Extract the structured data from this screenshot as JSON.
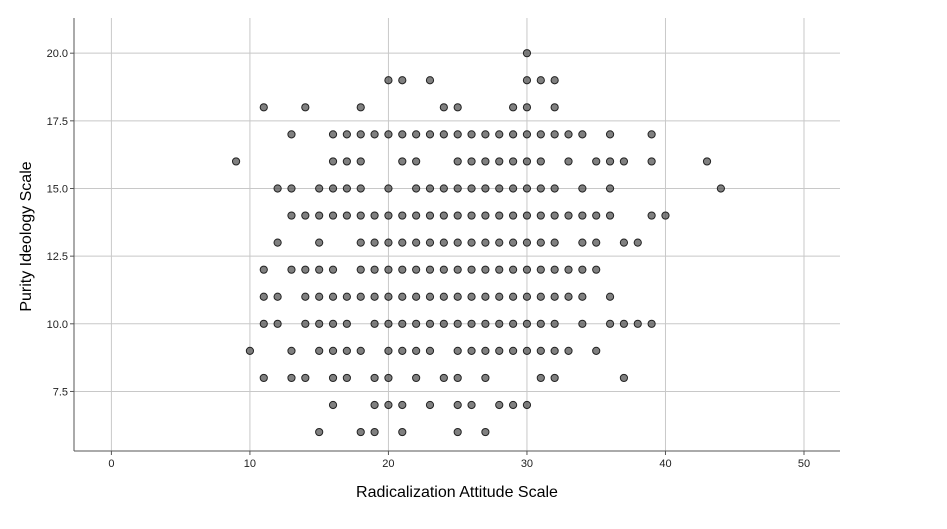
{
  "chart_data": {
    "type": "scatter",
    "title": "",
    "xlabel": "Radicalization Attitude Scale",
    "ylabel": "Purity Ideology Scale",
    "xlim": [
      -2.7,
      52.6
    ],
    "ylim": [
      5.3,
      21.3
    ],
    "x_ticks": [
      0,
      10,
      20,
      30,
      40,
      50
    ],
    "y_ticks": [
      7.5,
      10.0,
      12.5,
      15.0,
      17.5,
      20.0
    ],
    "x_tick_labels": [
      "0",
      "10",
      "20",
      "30",
      "40",
      "50"
    ],
    "y_tick_labels": [
      "7.5",
      "10.0",
      "12.5",
      "15.0",
      "17.5",
      "20.0"
    ],
    "grid": true,
    "marker_color": "#555555",
    "marker_edge_color": "#222222",
    "series": [
      {
        "points": [
          [
            30,
            20
          ],
          [
            20,
            19
          ],
          [
            21,
            19
          ],
          [
            23,
            19
          ],
          [
            30,
            19
          ],
          [
            31,
            19
          ],
          [
            32,
            19
          ],
          [
            11,
            18
          ],
          [
            14,
            18
          ],
          [
            18,
            18
          ],
          [
            24,
            18
          ],
          [
            25,
            18
          ],
          [
            29,
            18
          ],
          [
            30,
            18
          ],
          [
            32,
            18
          ],
          [
            13,
            17
          ],
          [
            16,
            17
          ],
          [
            17,
            17
          ],
          [
            18,
            17
          ],
          [
            19,
            17
          ],
          [
            20,
            17
          ],
          [
            21,
            17
          ],
          [
            22,
            17
          ],
          [
            23,
            17
          ],
          [
            24,
            17
          ],
          [
            25,
            17
          ],
          [
            26,
            17
          ],
          [
            27,
            17
          ],
          [
            28,
            17
          ],
          [
            29,
            17
          ],
          [
            30,
            17
          ],
          [
            31,
            17
          ],
          [
            32,
            17
          ],
          [
            33,
            17
          ],
          [
            34,
            17
          ],
          [
            36,
            17
          ],
          [
            39,
            17
          ],
          [
            9,
            16
          ],
          [
            16,
            16
          ],
          [
            17,
            16
          ],
          [
            18,
            16
          ],
          [
            21,
            16
          ],
          [
            22,
            16
          ],
          [
            25,
            16
          ],
          [
            26,
            16
          ],
          [
            27,
            16
          ],
          [
            28,
            16
          ],
          [
            29,
            16
          ],
          [
            30,
            16
          ],
          [
            31,
            16
          ],
          [
            33,
            16
          ],
          [
            35,
            16
          ],
          [
            36,
            16
          ],
          [
            37,
            16
          ],
          [
            39,
            16
          ],
          [
            43,
            16
          ],
          [
            12,
            15
          ],
          [
            13,
            15
          ],
          [
            15,
            15
          ],
          [
            16,
            15
          ],
          [
            17,
            15
          ],
          [
            18,
            15
          ],
          [
            20,
            15
          ],
          [
            22,
            15
          ],
          [
            23,
            15
          ],
          [
            24,
            15
          ],
          [
            25,
            15
          ],
          [
            26,
            15
          ],
          [
            27,
            15
          ],
          [
            28,
            15
          ],
          [
            29,
            15
          ],
          [
            30,
            15
          ],
          [
            31,
            15
          ],
          [
            32,
            15
          ],
          [
            34,
            15
          ],
          [
            36,
            15
          ],
          [
            44,
            15
          ],
          [
            13,
            14
          ],
          [
            14,
            14
          ],
          [
            15,
            14
          ],
          [
            16,
            14
          ],
          [
            17,
            14
          ],
          [
            18,
            14
          ],
          [
            19,
            14
          ],
          [
            20,
            14
          ],
          [
            21,
            14
          ],
          [
            22,
            14
          ],
          [
            23,
            14
          ],
          [
            24,
            14
          ],
          [
            25,
            14
          ],
          [
            26,
            14
          ],
          [
            27,
            14
          ],
          [
            28,
            14
          ],
          [
            29,
            14
          ],
          [
            30,
            14
          ],
          [
            31,
            14
          ],
          [
            32,
            14
          ],
          [
            33,
            14
          ],
          [
            34,
            14
          ],
          [
            35,
            14
          ],
          [
            36,
            14
          ],
          [
            39,
            14
          ],
          [
            40,
            14
          ],
          [
            12,
            13
          ],
          [
            15,
            13
          ],
          [
            18,
            13
          ],
          [
            19,
            13
          ],
          [
            20,
            13
          ],
          [
            21,
            13
          ],
          [
            22,
            13
          ],
          [
            23,
            13
          ],
          [
            24,
            13
          ],
          [
            25,
            13
          ],
          [
            26,
            13
          ],
          [
            27,
            13
          ],
          [
            28,
            13
          ],
          [
            29,
            13
          ],
          [
            30,
            13
          ],
          [
            31,
            13
          ],
          [
            32,
            13
          ],
          [
            34,
            13
          ],
          [
            35,
            13
          ],
          [
            37,
            13
          ],
          [
            38,
            13
          ],
          [
            11,
            12
          ],
          [
            13,
            12
          ],
          [
            14,
            12
          ],
          [
            15,
            12
          ],
          [
            16,
            12
          ],
          [
            18,
            12
          ],
          [
            19,
            12
          ],
          [
            20,
            12
          ],
          [
            21,
            12
          ],
          [
            22,
            12
          ],
          [
            23,
            12
          ],
          [
            24,
            12
          ],
          [
            25,
            12
          ],
          [
            26,
            12
          ],
          [
            27,
            12
          ],
          [
            28,
            12
          ],
          [
            29,
            12
          ],
          [
            30,
            12
          ],
          [
            31,
            12
          ],
          [
            32,
            12
          ],
          [
            33,
            12
          ],
          [
            34,
            12
          ],
          [
            35,
            12
          ],
          [
            11,
            11
          ],
          [
            12,
            11
          ],
          [
            14,
            11
          ],
          [
            15,
            11
          ],
          [
            16,
            11
          ],
          [
            17,
            11
          ],
          [
            18,
            11
          ],
          [
            19,
            11
          ],
          [
            20,
            11
          ],
          [
            21,
            11
          ],
          [
            22,
            11
          ],
          [
            23,
            11
          ],
          [
            24,
            11
          ],
          [
            25,
            11
          ],
          [
            26,
            11
          ],
          [
            27,
            11
          ],
          [
            28,
            11
          ],
          [
            29,
            11
          ],
          [
            30,
            11
          ],
          [
            31,
            11
          ],
          [
            32,
            11
          ],
          [
            33,
            11
          ],
          [
            34,
            11
          ],
          [
            36,
            11
          ],
          [
            11,
            10
          ],
          [
            12,
            10
          ],
          [
            14,
            10
          ],
          [
            15,
            10
          ],
          [
            16,
            10
          ],
          [
            17,
            10
          ],
          [
            19,
            10
          ],
          [
            20,
            10
          ],
          [
            21,
            10
          ],
          [
            22,
            10
          ],
          [
            23,
            10
          ],
          [
            24,
            10
          ],
          [
            25,
            10
          ],
          [
            26,
            10
          ],
          [
            27,
            10
          ],
          [
            28,
            10
          ],
          [
            29,
            10
          ],
          [
            30,
            10
          ],
          [
            31,
            10
          ],
          [
            32,
            10
          ],
          [
            34,
            10
          ],
          [
            36,
            10
          ],
          [
            37,
            10
          ],
          [
            38,
            10
          ],
          [
            39,
            10
          ],
          [
            10,
            9
          ],
          [
            13,
            9
          ],
          [
            15,
            9
          ],
          [
            16,
            9
          ],
          [
            17,
            9
          ],
          [
            18,
            9
          ],
          [
            20,
            9
          ],
          [
            21,
            9
          ],
          [
            22,
            9
          ],
          [
            23,
            9
          ],
          [
            25,
            9
          ],
          [
            26,
            9
          ],
          [
            27,
            9
          ],
          [
            28,
            9
          ],
          [
            29,
            9
          ],
          [
            30,
            9
          ],
          [
            31,
            9
          ],
          [
            32,
            9
          ],
          [
            33,
            9
          ],
          [
            35,
            9
          ],
          [
            11,
            8
          ],
          [
            13,
            8
          ],
          [
            14,
            8
          ],
          [
            16,
            8
          ],
          [
            17,
            8
          ],
          [
            19,
            8
          ],
          [
            20,
            8
          ],
          [
            22,
            8
          ],
          [
            24,
            8
          ],
          [
            25,
            8
          ],
          [
            27,
            8
          ],
          [
            31,
            8
          ],
          [
            32,
            8
          ],
          [
            37,
            8
          ],
          [
            16,
            7
          ],
          [
            19,
            7
          ],
          [
            20,
            7
          ],
          [
            21,
            7
          ],
          [
            23,
            7
          ],
          [
            25,
            7
          ],
          [
            26,
            7
          ],
          [
            28,
            7
          ],
          [
            29,
            7
          ],
          [
            30,
            7
          ],
          [
            15,
            6
          ],
          [
            18,
            6
          ],
          [
            19,
            6
          ],
          [
            21,
            6
          ],
          [
            25,
            6
          ],
          [
            27,
            6
          ]
        ]
      }
    ]
  }
}
